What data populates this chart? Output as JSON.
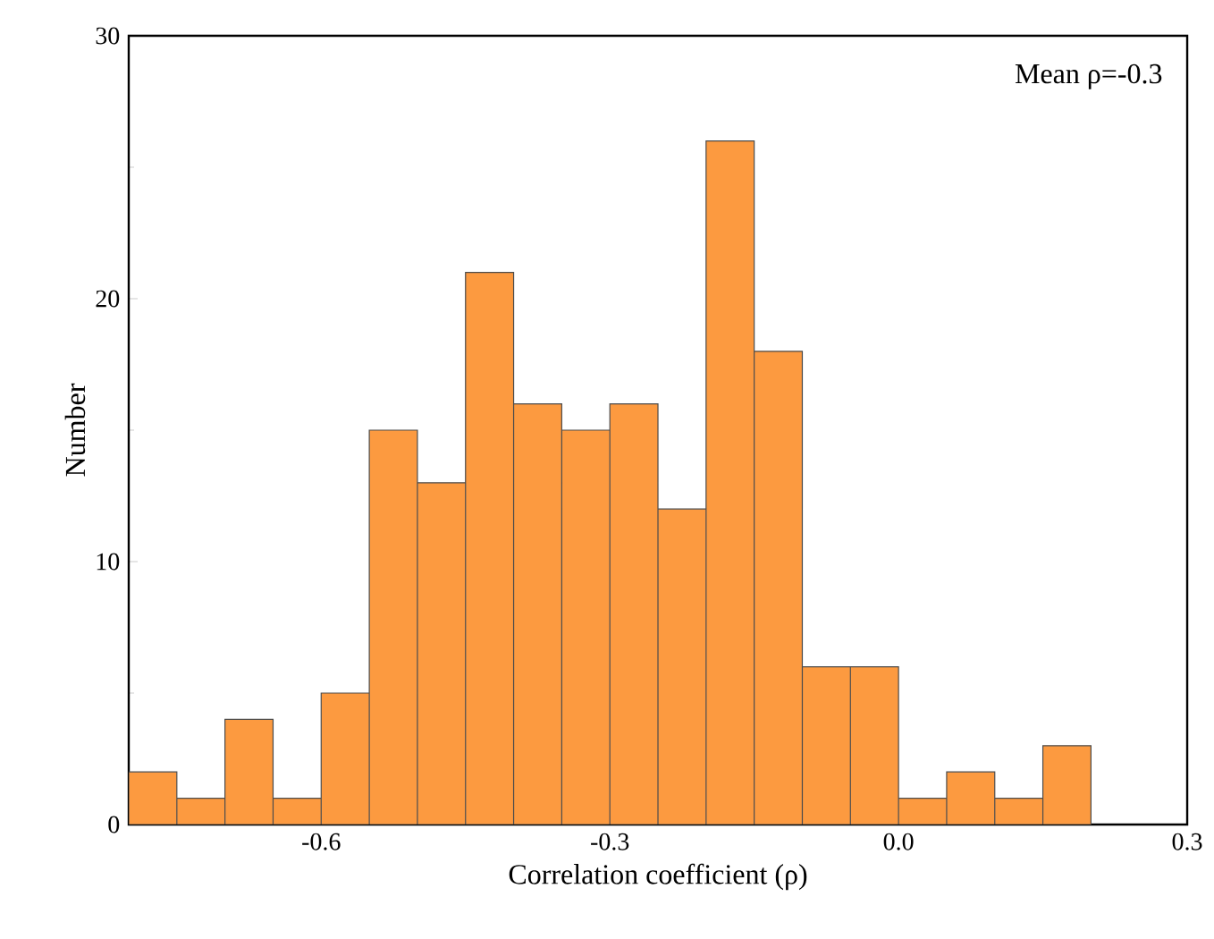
{
  "chart_data": {
    "type": "histogram",
    "xlabel": "Correlation coefficient (ρ)",
    "ylabel": "Number",
    "bins": [
      -0.8,
      -0.75,
      -0.7,
      -0.65,
      -0.6,
      -0.55,
      -0.5,
      -0.45,
      -0.4,
      -0.35,
      -0.3,
      -0.25,
      -0.2,
      -0.15,
      -0.1,
      -0.05,
      0.0,
      0.05,
      0.1,
      0.15,
      0.2
    ],
    "values": [
      2,
      1,
      4,
      1,
      5,
      15,
      13,
      21,
      16,
      15,
      16,
      12,
      26,
      18,
      6,
      6,
      1,
      2,
      1,
      3
    ],
    "color": "#fc9a40",
    "xlim": [
      -0.8,
      0.3
    ],
    "xticks": [
      -0.6,
      -0.3,
      {
        "value": 0,
        "label": "0.0"
      },
      0.3
    ],
    "ylim": [
      0,
      30
    ],
    "yticks": [
      0,
      10,
      20,
      30
    ],
    "annotations": [
      "Mean ρ=-0.3"
    ]
  }
}
